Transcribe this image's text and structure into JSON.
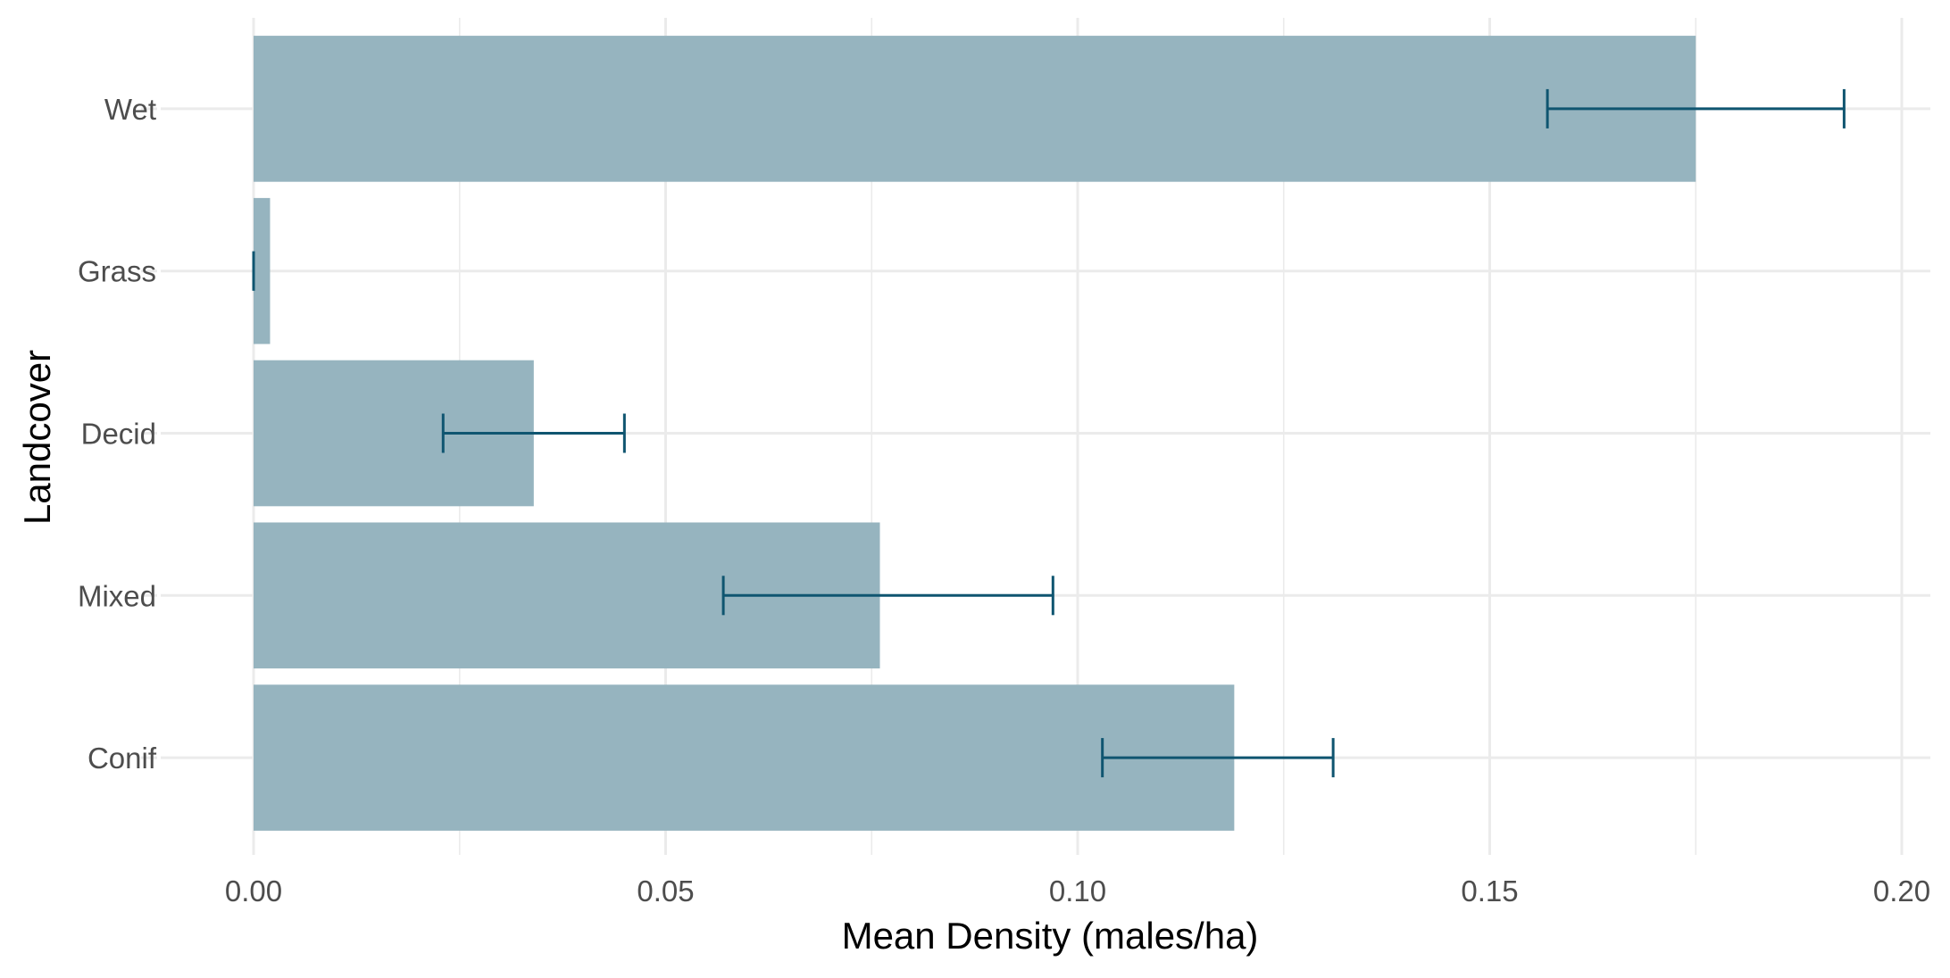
{
  "chart_data": {
    "type": "bar",
    "orientation": "horizontal",
    "title": "",
    "xlabel": "Mean Density (males/ha)",
    "ylabel": "Landcover",
    "categories": [
      "Conif",
      "Mixed",
      "Decid",
      "Grass",
      "Wet"
    ],
    "values": [
      0.119,
      0.076,
      0.034,
      0.002,
      0.175
    ],
    "error_low": [
      0.103,
      0.057,
      0.023,
      0.0,
      0.157
    ],
    "error_high": [
      0.131,
      0.097,
      0.045,
      0.0,
      0.193
    ],
    "xlim": [
      -0.01,
      0.2
    ],
    "xticks": [
      0.0,
      0.05,
      0.1,
      0.15,
      0.2
    ],
    "xtick_labels": [
      "0.00",
      "0.05",
      "0.10",
      "0.15",
      "0.20"
    ],
    "grid": true,
    "legend": "none",
    "colors": {
      "bar": "#96b4bf",
      "error_bar": "#0f5570",
      "grid": "#ebebeb"
    }
  }
}
